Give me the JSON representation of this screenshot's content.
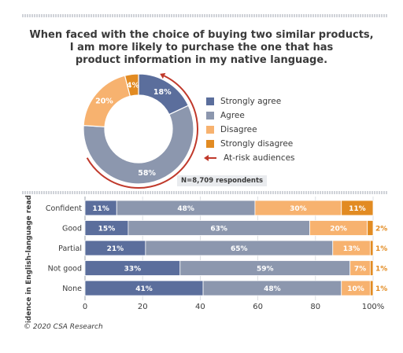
{
  "title_lines": [
    "When faced with the choice of buying two similar products,",
    "I am more likely to purchase the one that has",
    "product information in my native language."
  ],
  "colors": {
    "strongly_agree": "#5b6e9c",
    "agree": "#8c97ae",
    "disagree": "#f7b26f",
    "strongly_disagree": "#e28b22",
    "at_risk": "#c0392b"
  },
  "legend": [
    {
      "label": "Strongly agree",
      "key": "strongly_agree"
    },
    {
      "label": "Agree",
      "key": "agree"
    },
    {
      "label": "Disagree",
      "key": "disagree"
    },
    {
      "label": "Strongly disagree",
      "key": "strongly_disagree"
    }
  ],
  "at_risk_label": "At-risk audiences",
  "respondents": "N=8,709 respondents",
  "credit": "© 2020 CSA Research",
  "chart_data": [
    {
      "type": "pie",
      "categories": [
        "Strongly agree",
        "Agree",
        "Disagree",
        "Strongly disagree"
      ],
      "values": [
        18,
        58,
        20,
        4
      ],
      "labels": [
        "18%",
        "58%",
        "20%",
        "4%"
      ]
    },
    {
      "type": "bar",
      "orientation": "horizontal",
      "stacked": true,
      "ylabel": "Confidence in English-language reading ability",
      "categories": [
        "Confident",
        "Good",
        "Partial",
        "Not good",
        "None"
      ],
      "series": [
        {
          "name": "Strongly agree",
          "values": [
            11,
            15,
            21,
            33,
            41
          ]
        },
        {
          "name": "Agree",
          "values": [
            48,
            63,
            65,
            59,
            48
          ]
        },
        {
          "name": "Disagree",
          "values": [
            30,
            20,
            13,
            7,
            10
          ]
        },
        {
          "name": "Strongly disagree",
          "values": [
            11,
            2,
            1,
            1,
            1
          ]
        }
      ],
      "xticks": [
        "0",
        "20",
        "40",
        "60",
        "80",
        "100%"
      ],
      "xlim": [
        0,
        100
      ]
    }
  ]
}
